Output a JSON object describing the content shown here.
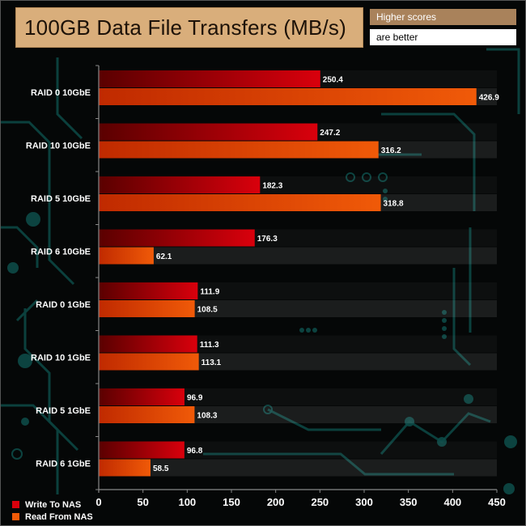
{
  "header": {
    "title": "100GB Data File Transfers (MB/s)",
    "note_top": "Higher scores",
    "note_bottom": "are better"
  },
  "colors": {
    "write": "#d9000c",
    "read": "#f05a08"
  },
  "chart_data": {
    "type": "bar",
    "orientation": "horizontal",
    "title": "100GB Data File Transfers (MB/s)",
    "categories": [
      "RAID 0 10GbE",
      "RAID 10 10GbE",
      "RAID 5 10GbE",
      "RAID 6 10GbE",
      "RAID 0 1GbE",
      "RAID 10 1GbE",
      "RAID 5 1GbE",
      "RAID 6 1GbE"
    ],
    "series": [
      {
        "name": "Write To NAS",
        "values": [
          250.4,
          247.2,
          182.3,
          176.3,
          111.9,
          111.3,
          96.9,
          96.8
        ],
        "labels": [
          "250.4",
          "247.2",
          "182.3",
          "176.3",
          "111.9",
          "111.3",
          "96.9",
          "96.8"
        ]
      },
      {
        "name": "Read From NAS",
        "values": [
          426.9,
          316.2,
          318.8,
          62.1,
          108.5,
          113.1,
          108.3,
          58.5
        ],
        "labels": [
          "426.9",
          "316.2",
          "318.8",
          "62.1",
          "108.5",
          "113.1",
          "108.3",
          "58.5"
        ]
      }
    ],
    "xlim": [
      0,
      450
    ],
    "xticks": [
      "0",
      "50",
      "100",
      "150",
      "200",
      "250",
      "300",
      "350",
      "400",
      "450"
    ],
    "legend": "bottom-left",
    "grid": false
  }
}
